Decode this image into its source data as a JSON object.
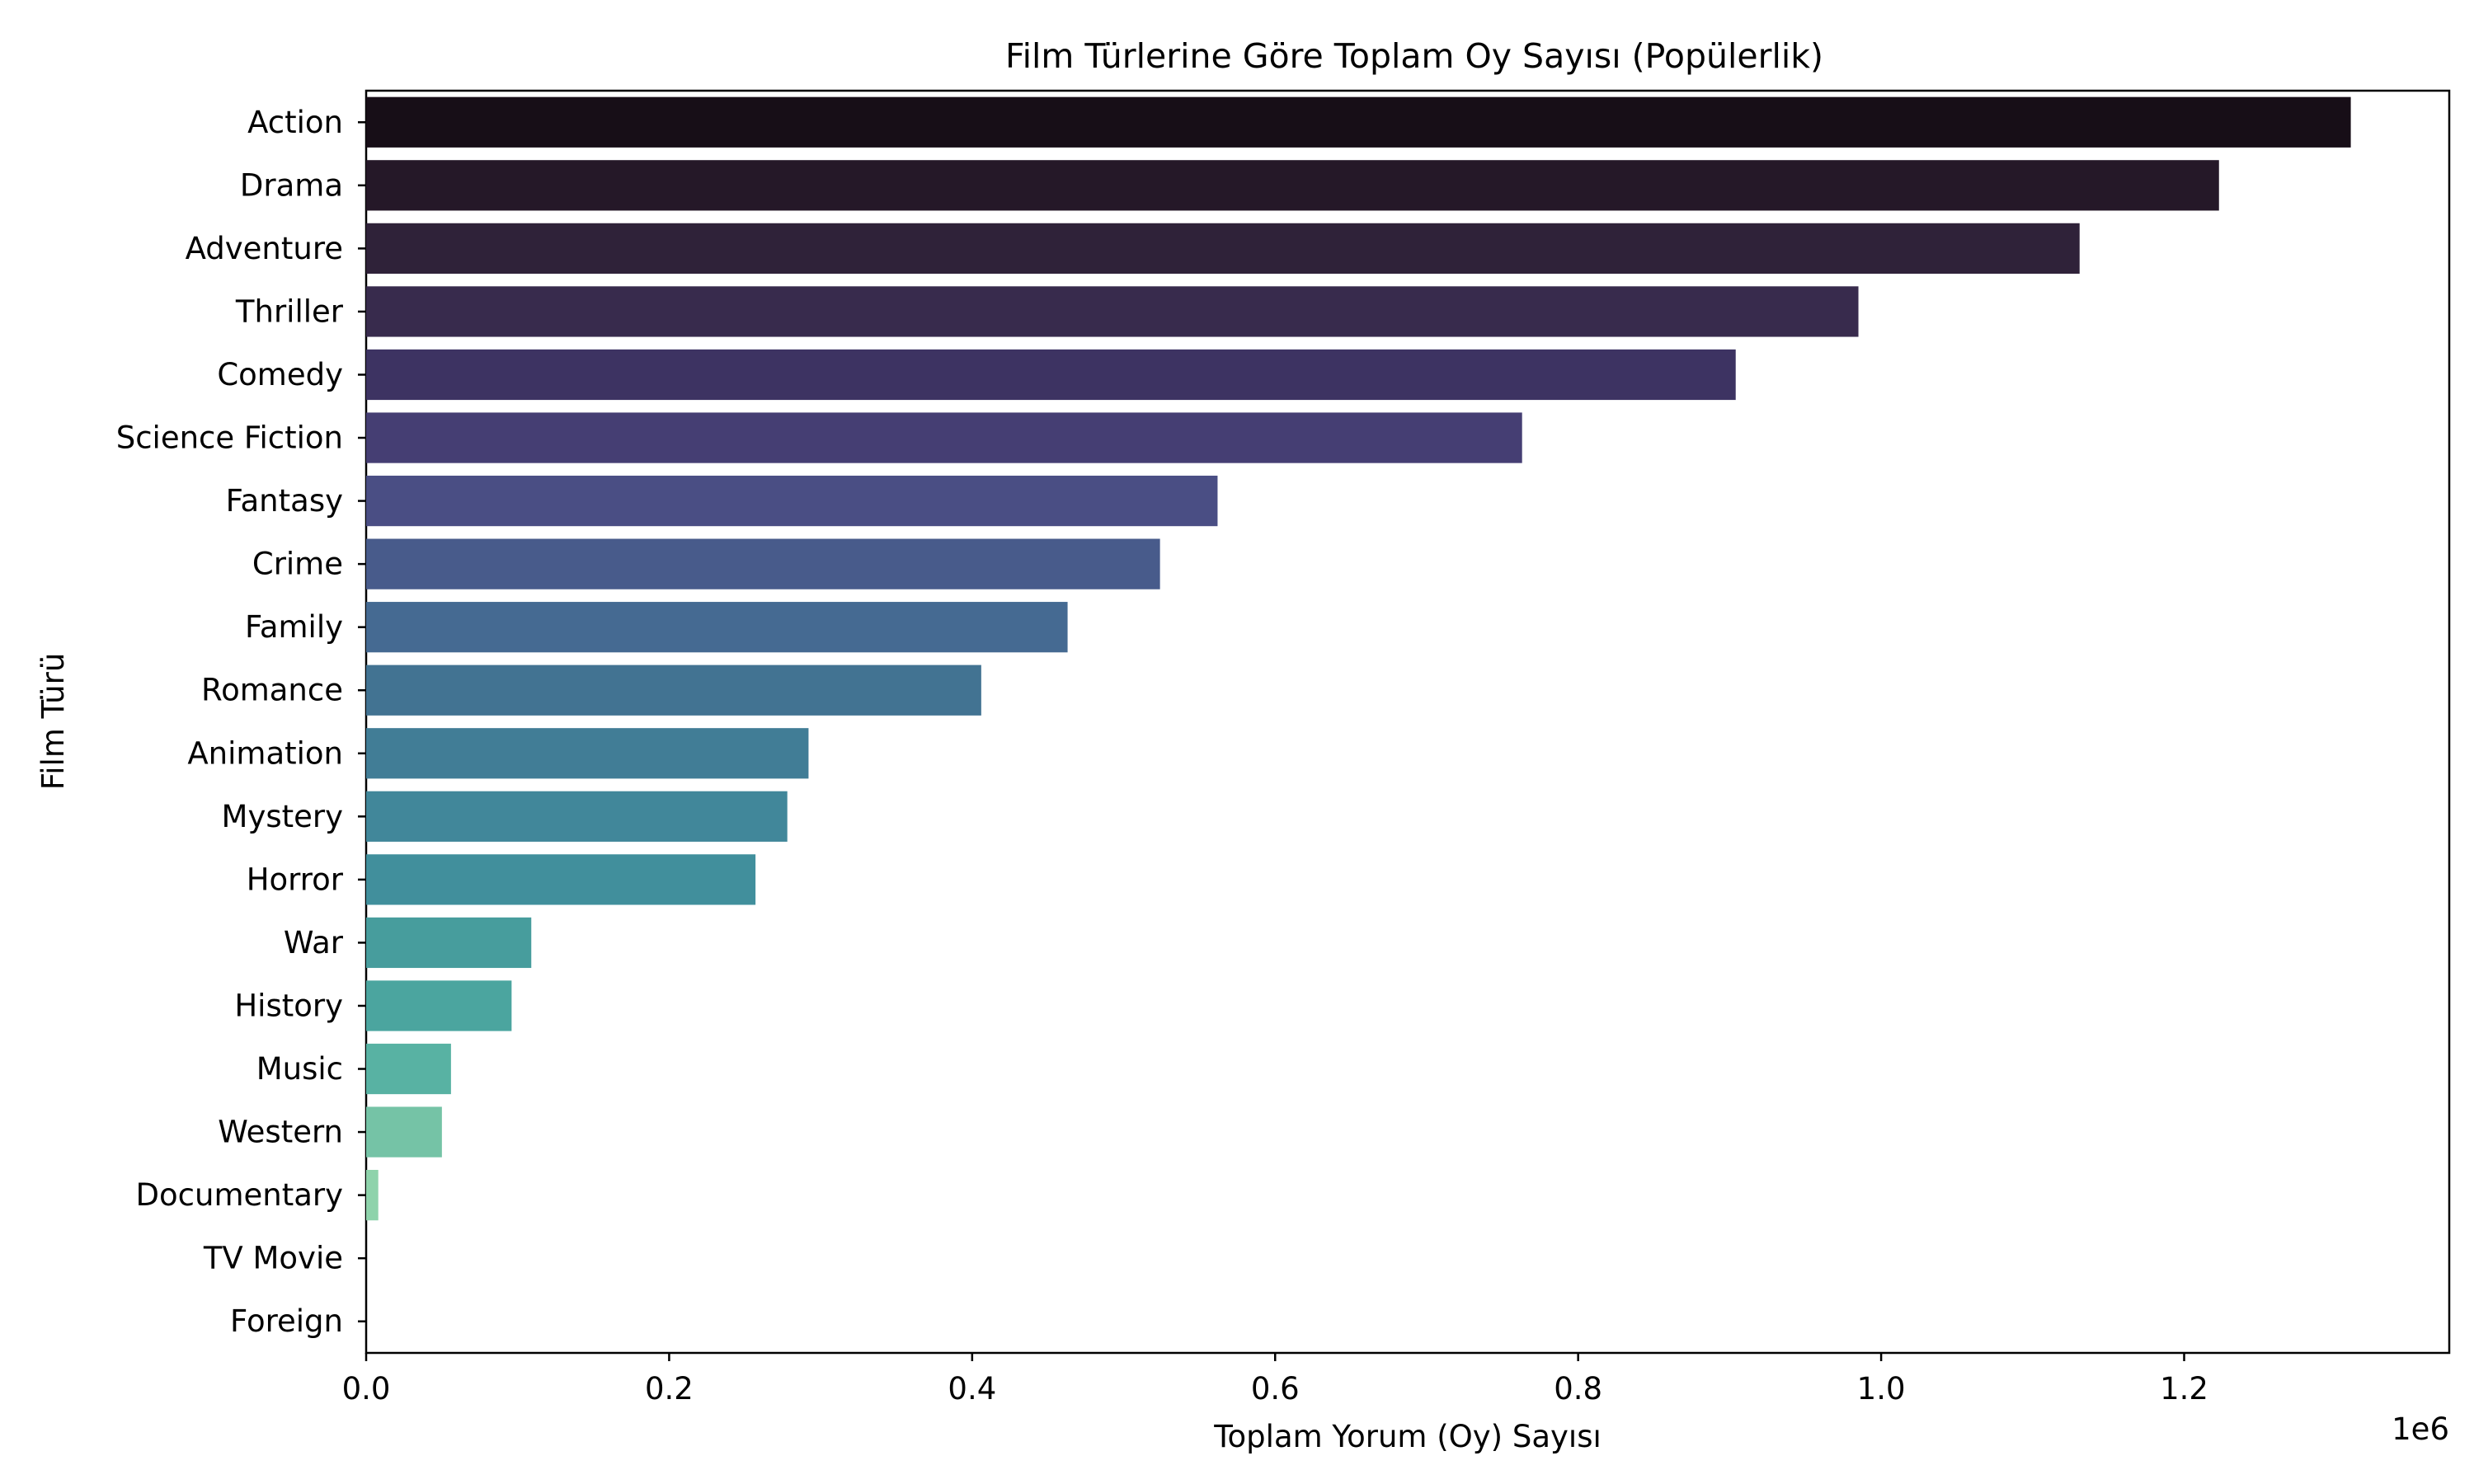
{
  "chart_data": {
    "type": "bar",
    "orientation": "horizontal",
    "title": "Film Türlerine Göre Toplam Oy Sayısı (Popülerlik)",
    "xlabel": "Toplam Yorum (Oy) Sayısı",
    "ylabel": "Film Türü",
    "x_offset_label": "1e6",
    "xlim": [
      0,
      1375000
    ],
    "x_ticks": [
      0,
      200000,
      400000,
      600000,
      800000,
      1000000,
      1200000
    ],
    "x_tick_labels": [
      "0.0",
      "0.2",
      "0.4",
      "0.6",
      "0.8",
      "1.0",
      "1.2"
    ],
    "grid": false,
    "legend": "none",
    "categories": [
      "Action",
      "Drama",
      "Adventure",
      "Thriller",
      "Comedy",
      "Science Fiction",
      "Fantasy",
      "Crime",
      "Family",
      "Romance",
      "Animation",
      "Mystery",
      "Horror",
      "War",
      "History",
      "Music",
      "Western",
      "Documentary",
      "TV Movie",
      "Foreign"
    ],
    "values": [
      1310000,
      1223000,
      1131000,
      985000,
      904000,
      763000,
      562000,
      524000,
      463000,
      406000,
      292000,
      278000,
      257000,
      109000,
      96000,
      56000,
      50000,
      8000,
      0,
      0
    ],
    "colors": [
      "#170e17",
      "#251828",
      "#2f2239",
      "#382b4d",
      "#3d3362",
      "#453e73",
      "#4a4e84",
      "#485b8b",
      "#456a92",
      "#427392",
      "#417d96",
      "#41879a",
      "#418f9c",
      "#479d9d",
      "#4ba59f",
      "#58b2a3",
      "#75c3a6",
      "#8ed3ab",
      "#a4dbb1",
      "#b8e4bd"
    ]
  }
}
